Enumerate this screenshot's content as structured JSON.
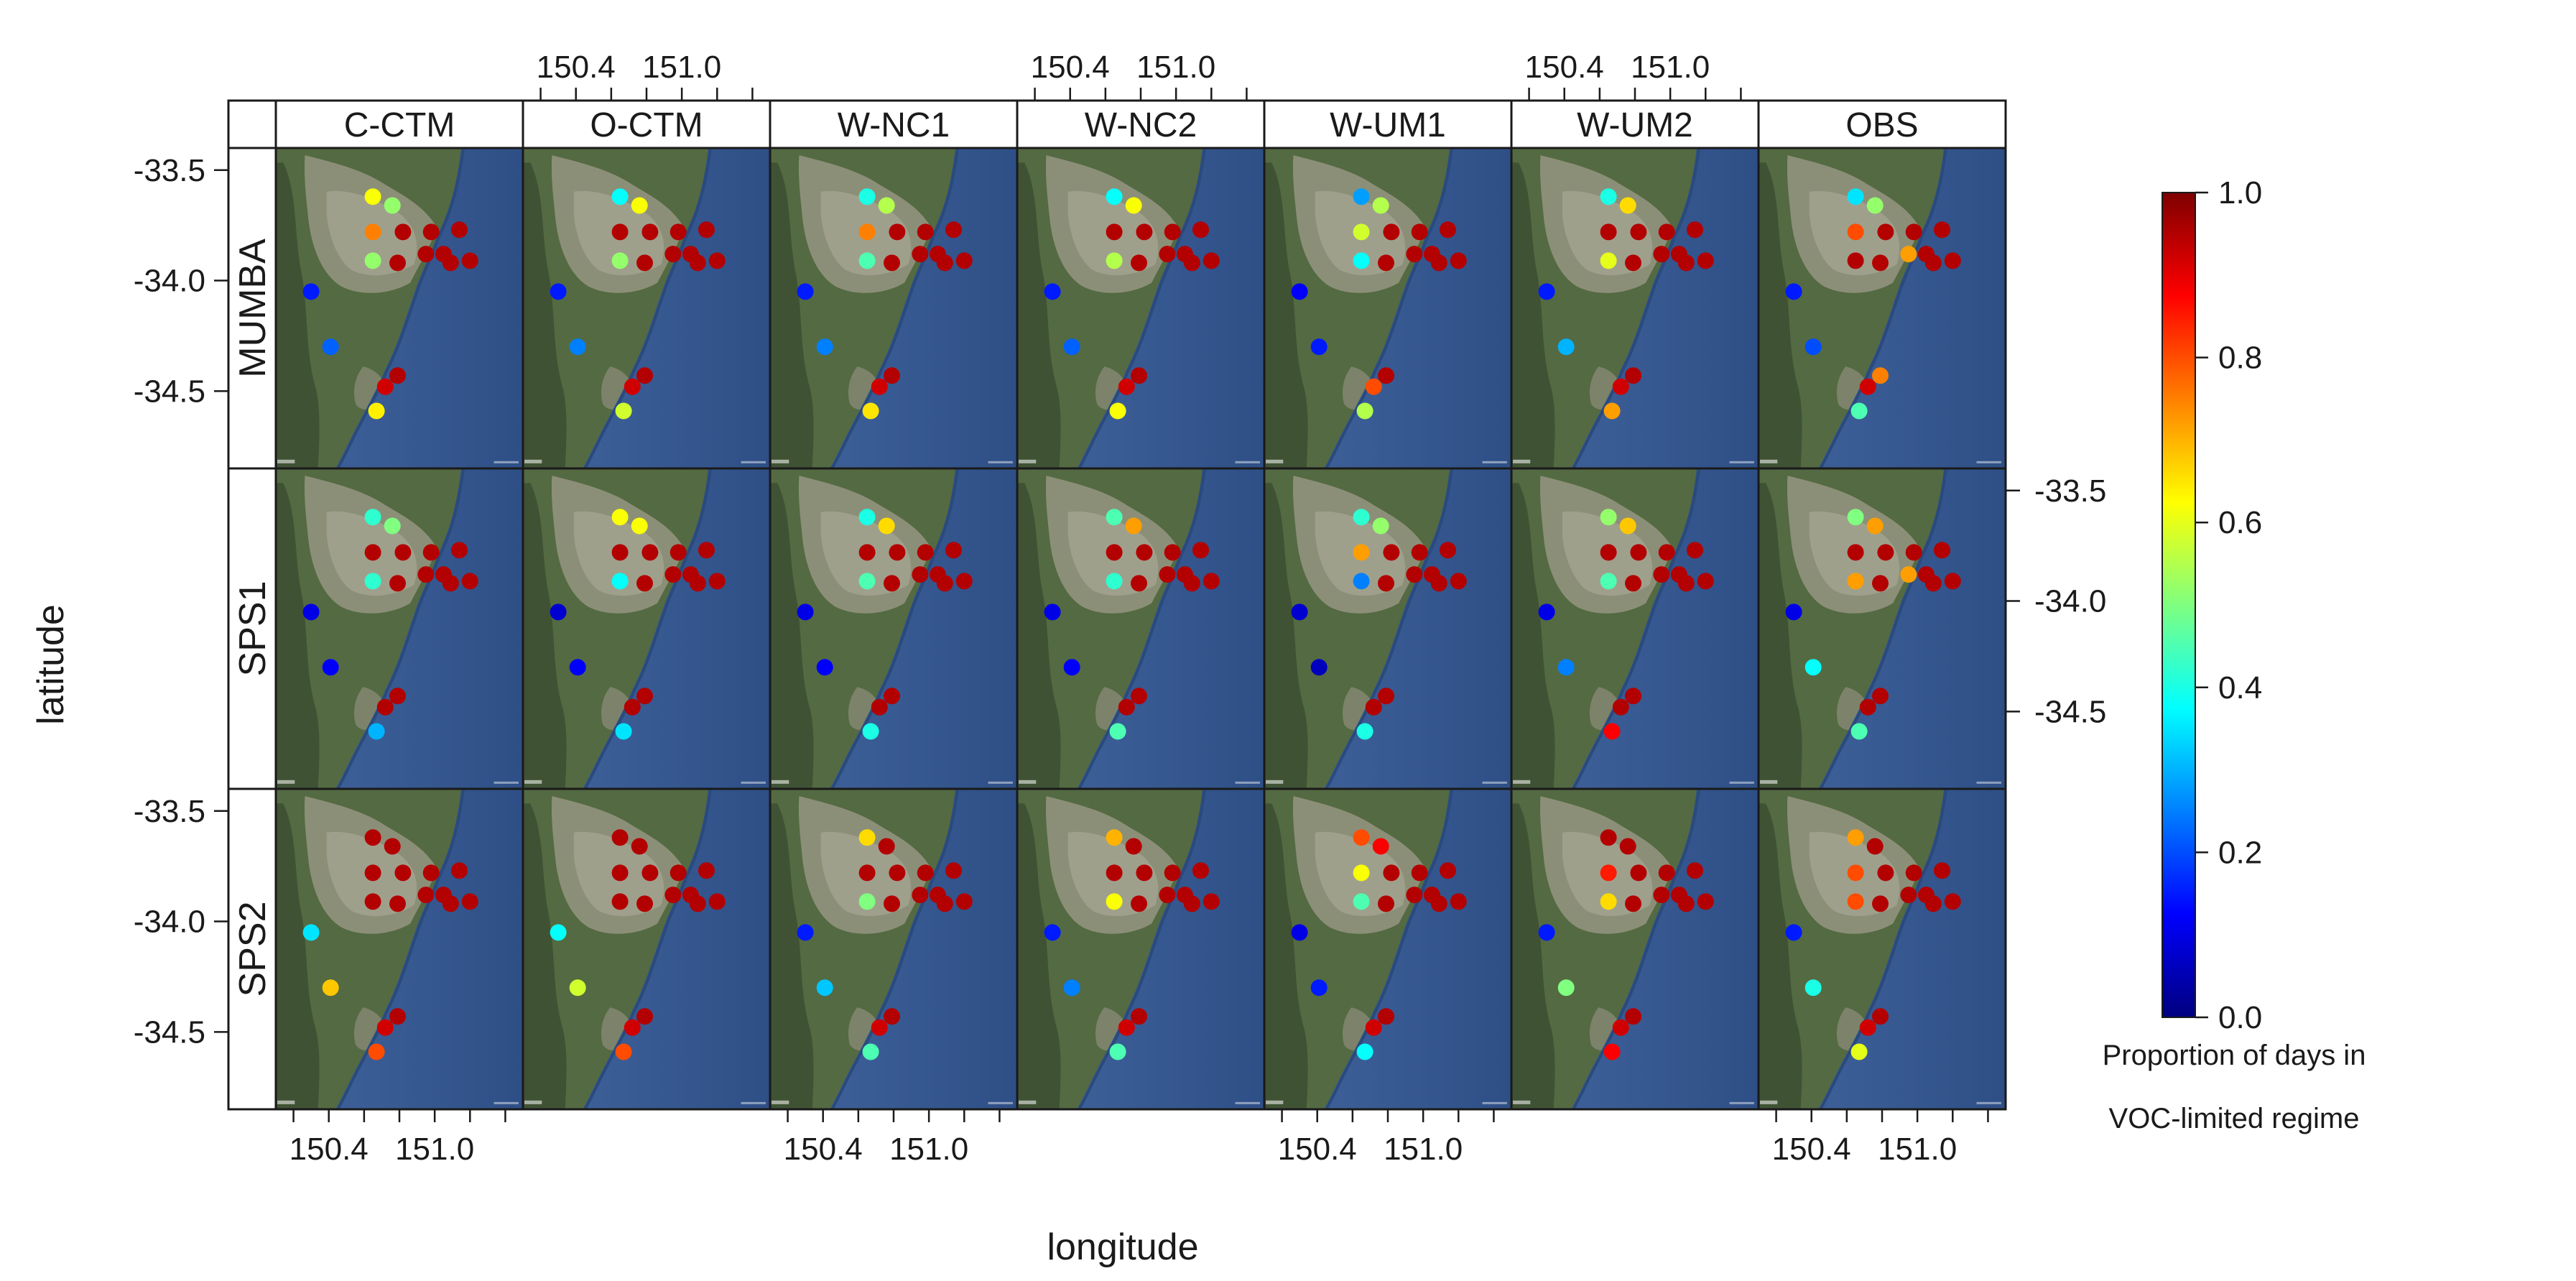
{
  "chart_data": {
    "type": "scatter",
    "title": "",
    "xlabel": "longitude",
    "ylabel": "latitude",
    "x_ticks": [
      150.4,
      151.0
    ],
    "x_tick_labels": [
      "150.4",
      "151.0"
    ],
    "y_ticks": [
      -33.5,
      -34.0,
      -34.5
    ],
    "y_tick_labels": [
      "-33.5",
      "-34.0",
      "-34.5"
    ],
    "xlim": [
      150.1,
      151.5
    ],
    "ylim": [
      -34.85,
      -33.4
    ],
    "columns": [
      "C-CTM",
      "O-CTM",
      "W-NC1",
      "W-NC2",
      "W-UM1",
      "W-UM2",
      "OBS"
    ],
    "rows": [
      "MUMBA",
      "SPS1",
      "SPS2"
    ],
    "sites": [
      {
        "lon": 150.65,
        "lat": -33.62
      },
      {
        "lon": 150.76,
        "lat": -33.66
      },
      {
        "lon": 150.65,
        "lat": -33.78
      },
      {
        "lon": 150.82,
        "lat": -33.78
      },
      {
        "lon": 150.98,
        "lat": -33.78
      },
      {
        "lon": 151.14,
        "lat": -33.77
      },
      {
        "lon": 150.65,
        "lat": -33.91
      },
      {
        "lon": 150.79,
        "lat": -33.92
      },
      {
        "lon": 150.95,
        "lat": -33.88
      },
      {
        "lon": 151.05,
        "lat": -33.88
      },
      {
        "lon": 151.09,
        "lat": -33.92
      },
      {
        "lon": 151.2,
        "lat": -33.91
      },
      {
        "lon": 150.3,
        "lat": -34.05
      },
      {
        "lon": 150.41,
        "lat": -34.3
      },
      {
        "lon": 150.72,
        "lat": -34.48
      },
      {
        "lon": 150.79,
        "lat": -34.43
      },
      {
        "lon": 150.67,
        "lat": -34.59
      }
    ],
    "panels": {
      "MUMBA": {
        "C-CTM": [
          0.62,
          0.52,
          0.75,
          0.95,
          0.95,
          0.95,
          0.52,
          0.95,
          0.95,
          0.95,
          0.95,
          0.95,
          0.15,
          0.22,
          0.92,
          0.95,
          0.64
        ],
        "O-CTM": [
          0.38,
          0.62,
          0.95,
          0.95,
          0.95,
          0.95,
          0.52,
          0.95,
          0.95,
          0.95,
          0.95,
          0.95,
          0.15,
          0.25,
          0.92,
          0.95,
          0.58
        ],
        "W-NC1": [
          0.4,
          0.55,
          0.75,
          0.95,
          0.95,
          0.95,
          0.45,
          0.95,
          0.95,
          0.95,
          0.95,
          0.95,
          0.15,
          0.25,
          0.92,
          0.95,
          0.65
        ],
        "W-NC2": [
          0.38,
          0.62,
          0.95,
          0.95,
          0.95,
          0.95,
          0.55,
          0.95,
          0.95,
          0.95,
          0.95,
          0.95,
          0.15,
          0.22,
          0.92,
          0.95,
          0.62
        ],
        "W-UM1": [
          0.28,
          0.55,
          0.58,
          0.95,
          0.95,
          0.95,
          0.38,
          0.95,
          0.95,
          0.95,
          0.95,
          0.95,
          0.12,
          0.15,
          0.8,
          0.95,
          0.55
        ],
        "W-UM2": [
          0.4,
          0.66,
          0.95,
          0.95,
          0.95,
          0.95,
          0.6,
          0.95,
          0.95,
          0.95,
          0.95,
          0.95,
          0.15,
          0.3,
          0.92,
          0.95,
          0.72
        ],
        "OBS": [
          0.35,
          0.52,
          0.8,
          0.95,
          0.95,
          0.95,
          0.95,
          0.95,
          0.72,
          0.95,
          0.95,
          0.95,
          0.15,
          0.2,
          0.92,
          0.75,
          0.45
        ]
      },
      "SPS1": {
        "C-CTM": [
          0.42,
          0.5,
          0.95,
          0.95,
          0.95,
          0.95,
          0.42,
          0.95,
          0.95,
          0.95,
          0.95,
          0.95,
          0.1,
          0.12,
          0.95,
          0.95,
          0.3
        ],
        "O-CTM": [
          0.62,
          0.62,
          0.95,
          0.95,
          0.95,
          0.95,
          0.38,
          0.95,
          0.95,
          0.95,
          0.95,
          0.95,
          0.08,
          0.12,
          0.95,
          0.95,
          0.35
        ],
        "W-NC1": [
          0.4,
          0.66,
          0.95,
          0.95,
          0.95,
          0.95,
          0.45,
          0.95,
          0.95,
          0.95,
          0.95,
          0.95,
          0.1,
          0.12,
          0.95,
          0.95,
          0.4
        ],
        "W-NC2": [
          0.45,
          0.72,
          0.95,
          0.95,
          0.95,
          0.95,
          0.42,
          0.95,
          0.95,
          0.95,
          0.95,
          0.95,
          0.1,
          0.12,
          0.95,
          0.95,
          0.45
        ],
        "W-UM1": [
          0.42,
          0.52,
          0.72,
          0.95,
          0.95,
          0.95,
          0.25,
          0.95,
          0.95,
          0.95,
          0.95,
          0.95,
          0.08,
          0.06,
          0.95,
          0.95,
          0.4
        ],
        "W-UM2": [
          0.52,
          0.68,
          0.95,
          0.95,
          0.95,
          0.95,
          0.45,
          0.95,
          0.95,
          0.95,
          0.95,
          0.95,
          0.1,
          0.25,
          0.95,
          0.95,
          0.88
        ],
        "OBS": [
          0.5,
          0.72,
          0.95,
          0.95,
          0.95,
          0.95,
          0.72,
          0.95,
          0.72,
          0.95,
          0.95,
          0.95,
          0.1,
          0.38,
          0.95,
          0.95,
          0.45
        ]
      },
      "SPS2": {
        "C-CTM": [
          0.95,
          0.95,
          0.95,
          0.95,
          0.95,
          0.95,
          0.95,
          0.95,
          0.95,
          0.95,
          0.95,
          0.95,
          0.35,
          0.68,
          0.92,
          0.95,
          0.8
        ],
        "O-CTM": [
          0.95,
          0.95,
          0.95,
          0.95,
          0.95,
          0.95,
          0.95,
          0.95,
          0.95,
          0.95,
          0.95,
          0.95,
          0.38,
          0.58,
          0.92,
          0.95,
          0.8
        ],
        "W-NC1": [
          0.66,
          0.95,
          0.95,
          0.95,
          0.95,
          0.95,
          0.5,
          0.95,
          0.95,
          0.95,
          0.95,
          0.95,
          0.15,
          0.32,
          0.92,
          0.95,
          0.45
        ],
        "W-NC2": [
          0.7,
          0.95,
          0.95,
          0.95,
          0.95,
          0.95,
          0.62,
          0.95,
          0.95,
          0.95,
          0.95,
          0.95,
          0.15,
          0.25,
          0.92,
          0.95,
          0.45
        ],
        "W-UM1": [
          0.8,
          0.88,
          0.62,
          0.95,
          0.95,
          0.95,
          0.45,
          0.95,
          0.95,
          0.95,
          0.95,
          0.95,
          0.1,
          0.15,
          0.92,
          0.95,
          0.38
        ],
        "W-UM2": [
          0.95,
          0.95,
          0.85,
          0.95,
          0.95,
          0.95,
          0.66,
          0.95,
          0.95,
          0.95,
          0.95,
          0.95,
          0.15,
          0.5,
          0.92,
          0.95,
          0.88
        ],
        "OBS": [
          0.72,
          0.95,
          0.8,
          0.95,
          0.95,
          0.95,
          0.8,
          0.95,
          0.95,
          0.95,
          0.95,
          0.95,
          0.15,
          0.4,
          0.92,
          0.95,
          0.6
        ]
      }
    },
    "colorbar": {
      "min": 0.0,
      "max": 1.0,
      "ticks": [
        0.0,
        0.2,
        0.4,
        0.6,
        0.8,
        1.0
      ],
      "tick_labels": [
        "0.0",
        "0.2",
        "0.4",
        "0.6",
        "0.8",
        "1.0"
      ],
      "colormap": "jet",
      "label_lines": [
        "Proportion of days in",
        "VOC-limited regime"
      ]
    },
    "legend_position": "right"
  },
  "colors": {
    "land": "#5a6b47",
    "land_urban": "#9a9a87",
    "ocean": "#3a5a92",
    "frame": "#1a1a1a"
  }
}
